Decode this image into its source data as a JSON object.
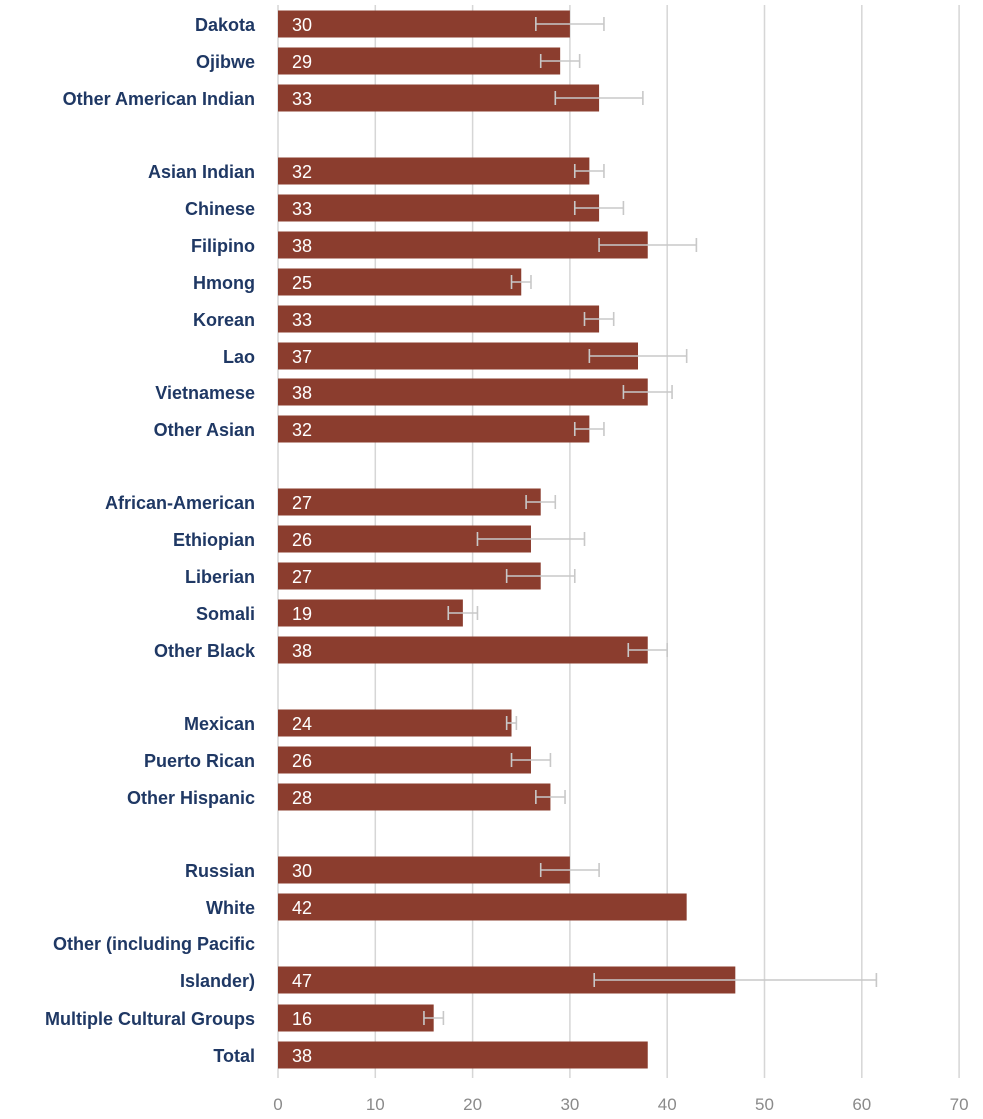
{
  "chart_data": {
    "type": "bar",
    "orientation": "horizontal",
    "categories": [
      [
        "Dakota"
      ],
      [
        "Ojibwe"
      ],
      [
        "Other American Indian"
      ],
      [
        "Asian Indian"
      ],
      [
        "Chinese"
      ],
      [
        "Filipino"
      ],
      [
        "Hmong"
      ],
      [
        "Korean"
      ],
      [
        "Lao"
      ],
      [
        "Vietnamese"
      ],
      [
        "Other Asian"
      ],
      [
        "African-American"
      ],
      [
        "Ethiopian"
      ],
      [
        "Liberian"
      ],
      [
        "Somali"
      ],
      [
        "Other Black"
      ],
      [
        "Mexican"
      ],
      [
        "Puerto Rican"
      ],
      [
        "Other Hispanic"
      ],
      [
        "Russian"
      ],
      [
        "White"
      ],
      [
        "Other (including Pacific",
        "Islander)"
      ],
      [
        "Multiple Cultural Groups"
      ],
      [
        "Total"
      ]
    ],
    "values": [
      30,
      29,
      33,
      32,
      33,
      38,
      25,
      33,
      37,
      38,
      32,
      27,
      26,
      27,
      19,
      38,
      24,
      26,
      28,
      30,
      42,
      47,
      16,
      38
    ],
    "error_low": [
      26.5,
      27.0,
      28.5,
      30.5,
      30.5,
      33.0,
      24.0,
      31.5,
      32.0,
      35.5,
      30.5,
      25.5,
      20.5,
      23.5,
      17.5,
      36.0,
      23.5,
      24.0,
      26.5,
      27.0,
      null,
      32.5,
      15.0,
      null
    ],
    "error_high": [
      33.5,
      31.0,
      37.5,
      33.5,
      35.5,
      43.0,
      26.0,
      34.5,
      42.0,
      40.5,
      33.5,
      28.5,
      31.5,
      30.5,
      20.5,
      40.0,
      24.5,
      28.0,
      29.5,
      33.0,
      null,
      61.5,
      17.0,
      null
    ],
    "groups": [
      [
        0,
        1,
        2
      ],
      [
        3,
        4,
        5,
        6,
        7,
        8,
        9,
        10
      ],
      [
        11,
        12,
        13,
        14,
        15
      ],
      [
        16,
        17,
        18
      ],
      [
        19,
        20,
        21,
        22,
        23
      ]
    ],
    "xlim": [
      0,
      70
    ],
    "xticks": [
      0,
      10,
      20,
      30,
      40,
      50,
      60,
      70
    ],
    "grid": true,
    "colors": {
      "bar": "#8b3d2e",
      "label": "#1f3864",
      "grid": "#d6d6d6",
      "error_bar": "#c8c8c8",
      "tick": "#8a8a8a"
    },
    "title": "",
    "xlabel": "",
    "ylabel": ""
  }
}
